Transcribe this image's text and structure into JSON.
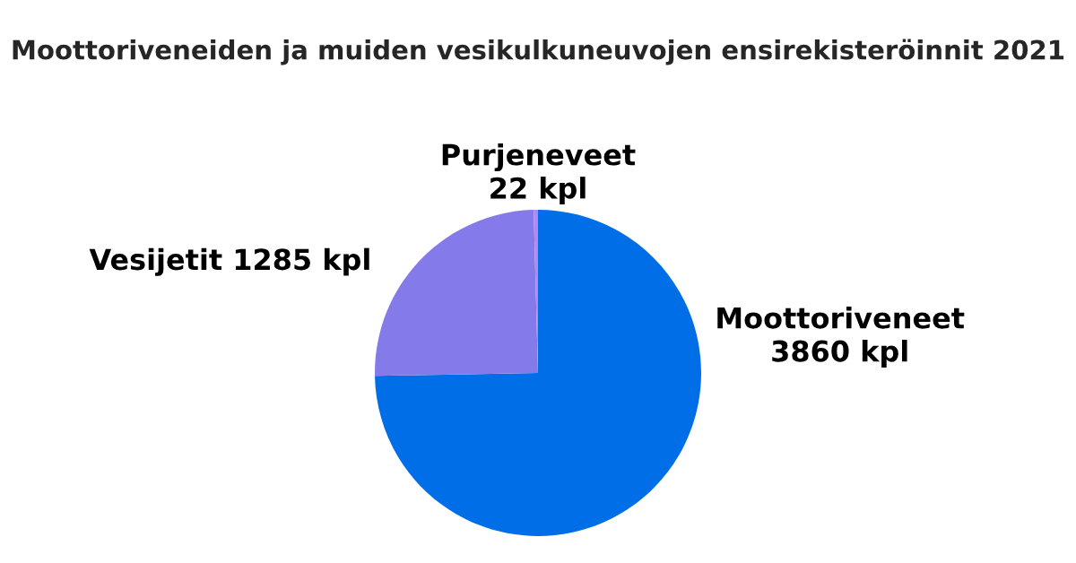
{
  "chart_data": {
    "type": "pie",
    "title": "Moottoriveneiden ja muiden vesikulkuneuvojen ensirekisteröinnit 2021",
    "categories": [
      "Moottoriveneet",
      "Vesijetit",
      "Purjeneveet"
    ],
    "values": [
      3860,
      1285,
      22
    ],
    "value_labels": [
      "3860 kpl",
      "1285 kpl",
      "22 kpl"
    ],
    "colors": [
      "#006ee6",
      "#857ae9",
      "#b08af0"
    ]
  }
}
